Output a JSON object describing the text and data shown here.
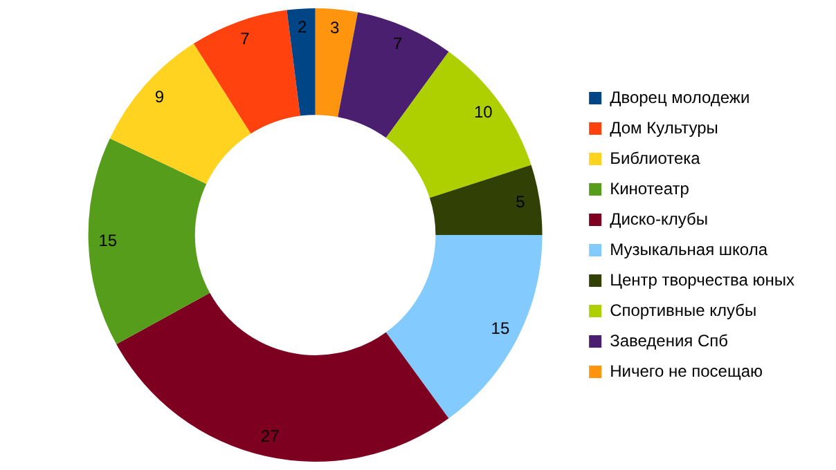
{
  "chart_data": {
    "type": "donut",
    "categories": [
      "Ничего не посещаю",
      "Заведения Спб",
      "Спортивные клубы",
      "Центр творчества юных",
      "Музыкальная школа",
      "Диско-клубы",
      "Кинотеатр",
      "Библиотека",
      "Дом Культуры",
      "Дворец молодежи"
    ],
    "values": [
      3,
      7,
      10,
      5,
      15,
      27,
      15,
      9,
      7,
      2
    ],
    "colors": [
      "#ff950e",
      "#4b1f6f",
      "#aecf00",
      "#314004",
      "#83caff",
      "#7e0021",
      "#579d1c",
      "#ffd320",
      "#ff420e",
      "#004586"
    ],
    "data_labels": true,
    "legend": "right"
  }
}
